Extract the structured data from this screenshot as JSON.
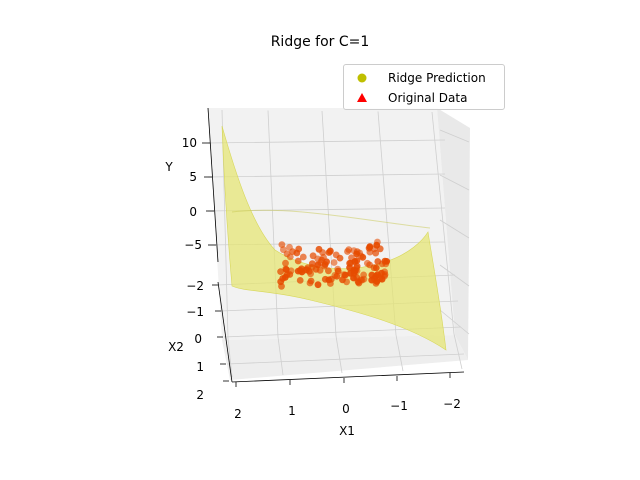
{
  "chart_data": {
    "type": "surface3d+scatter3d",
    "title": "Ridge for C=1",
    "xlabel": "X1",
    "ylabel": "X2",
    "zlabel": "Y",
    "x_ticks": [
      "2",
      "1",
      "0",
      "−1",
      "−2"
    ],
    "y_ticks": [
      "−2",
      "−1",
      "0",
      "1",
      "2"
    ],
    "z_ticks": [
      "10",
      "5",
      "0",
      "−5"
    ],
    "xlim": [
      -2.5,
      2.5
    ],
    "ylim": [
      -2.5,
      2.5
    ],
    "zlim": [
      -8,
      12
    ],
    "legend": [
      {
        "name": "Ridge Prediction",
        "marker": "circle",
        "color": "#bfbf00"
      },
      {
        "name": "Original Data",
        "marker": "triangle",
        "color": "#ff0000"
      }
    ],
    "legend_position": "top-right",
    "surface": {
      "name": "Ridge Prediction",
      "color": "#e6e66e",
      "relation": "cubic surface over X1, X2",
      "x_range": [
        -2,
        2
      ],
      "y_range": [
        -2,
        2
      ]
    },
    "data_points": {
      "name": "Original Data",
      "color": "#e64b00",
      "x_range": [
        -1,
        1
      ],
      "y_range": [
        -1,
        1
      ]
    }
  }
}
